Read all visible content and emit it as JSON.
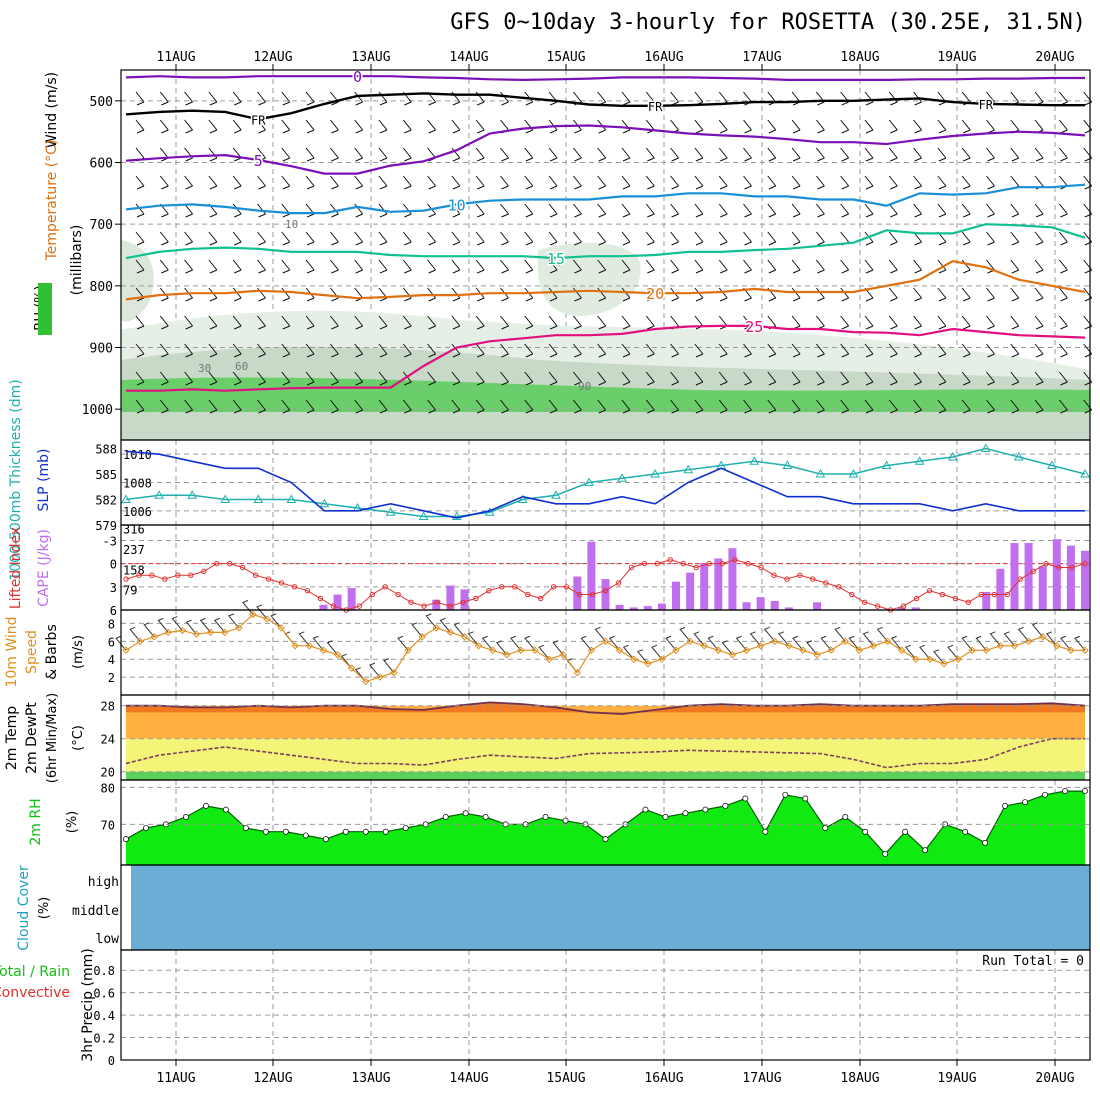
{
  "title": "GFS 0~10day 3-hourly for ROSETTA (30.25E, 31.5N)",
  "dates": [
    "11AUG",
    "12AUG",
    "13AUG",
    "14AUG",
    "15AUG",
    "16AUG",
    "17AUG",
    "18AUG",
    "19AUG",
    "20AUG"
  ],
  "chart_data": [
    {
      "type": "contour",
      "panel": "upper-air",
      "ylabel": "(millibars)",
      "side_labels": [
        "Wind (m/s)",
        "Temperature (°C)",
        "RH (%)"
      ],
      "yticks": [
        500,
        600,
        700,
        800,
        900,
        1000
      ],
      "ylim": [
        1050,
        450
      ],
      "isotherms": [
        {
          "label": "5",
          "color": "#7a10b8",
          "values": [
            597,
            593,
            590,
            588,
            596,
            606,
            618,
            618,
            605,
            598,
            580,
            553,
            545,
            541,
            540,
            543,
            548,
            553,
            556,
            558,
            562,
            567,
            567,
            570,
            563,
            557,
            553,
            550,
            552,
            556
          ]
        },
        {
          "label": "0",
          "color": "#7a10b8",
          "values": [
            462,
            460,
            462,
            462,
            460,
            460,
            460,
            460,
            460,
            462,
            463,
            465,
            466,
            465,
            464,
            462,
            462,
            462,
            463,
            464,
            466,
            466,
            466,
            466,
            465,
            465,
            464,
            464,
            463,
            463
          ]
        },
        {
          "label": "10",
          "color": "#1890d8",
          "values": [
            676,
            670,
            668,
            672,
            678,
            682,
            682,
            672,
            680,
            678,
            668,
            662,
            660,
            660,
            660,
            655,
            655,
            650,
            650,
            655,
            655,
            660,
            660,
            670,
            650,
            652,
            650,
            640,
            640,
            636
          ]
        },
        {
          "label": "15",
          "color": "#10c090",
          "values": [
            755,
            745,
            740,
            738,
            740,
            745,
            745,
            745,
            750,
            752,
            752,
            752,
            752,
            755,
            752,
            752,
            750,
            745,
            745,
            742,
            740,
            735,
            730,
            710,
            715,
            715,
            700,
            702,
            705,
            722
          ]
        },
        {
          "label": "20",
          "color": "#e07010",
          "values": [
            822,
            815,
            812,
            812,
            808,
            810,
            815,
            820,
            818,
            815,
            815,
            812,
            812,
            810,
            808,
            810,
            812,
            812,
            810,
            805,
            810,
            810,
            810,
            800,
            790,
            760,
            770,
            790,
            800,
            810
          ]
        },
        {
          "label": "25",
          "color": "#e01080",
          "values": [
            970,
            970,
            968,
            970,
            968,
            966,
            965,
            965,
            965,
            930,
            900,
            890,
            885,
            880,
            880,
            878,
            870,
            866,
            865,
            865,
            870,
            870,
            875,
            876,
            880,
            870,
            875,
            880,
            882,
            884
          ]
        }
      ],
      "freezing_level_label": "FR",
      "freezing_level": [
        522,
        518,
        516,
        518,
        530,
        520,
        505,
        492,
        490,
        488,
        490,
        490,
        495,
        500,
        506,
        508,
        508,
        507,
        505,
        502,
        502,
        500,
        500,
        498,
        496,
        502,
        505,
        506,
        507,
        507
      ],
      "rh_labels": [
        "10",
        "30",
        "60",
        "90"
      ]
    },
    {
      "type": "line",
      "panel": "thickness-slp",
      "side_labels": [
        "1000-500mb Thickness (dm)",
        "SLP (mb)"
      ],
      "left_ticks": [
        579,
        582,
        585,
        588
      ],
      "right_ticks": [
        1006,
        1008,
        1010
      ],
      "series": [
        {
          "color": "#20b0b0",
          "marker": "triangle",
          "axis": "left",
          "values": [
            582,
            582.5,
            582.5,
            582,
            582,
            582,
            581.5,
            581,
            580.5,
            580,
            580,
            580.5,
            582,
            582.5,
            584,
            584.5,
            585,
            585.5,
            586,
            586.5,
            586,
            585,
            585,
            586,
            586.5,
            587,
            588,
            587,
            586,
            585
          ]
        },
        {
          "color": "#1030d0",
          "axis": "right",
          "values": [
            1010.2,
            1010,
            1009.5,
            1009,
            1009,
            1008,
            1006,
            1006,
            1006.5,
            1006,
            1005.5,
            1006,
            1007,
            1006.5,
            1006.5,
            1007,
            1006.5,
            1008,
            1009,
            1008,
            1007,
            1007,
            1006.5,
            1006.5,
            1006.5,
            1006,
            1006.5,
            1006,
            1006,
            1006
          ]
        }
      ]
    },
    {
      "type": "bar+line",
      "panel": "instability",
      "side_labels": [
        "Lifted Index",
        "CAPE (J/kg)"
      ],
      "left_ticks": [
        -3,
        0,
        3,
        6
      ],
      "right_ticks": [
        79,
        158,
        237,
        316
      ],
      "cape_bars": [
        0,
        0,
        0,
        0,
        0,
        0,
        0,
        0,
        0,
        0,
        0,
        0,
        0,
        0,
        20,
        60,
        85,
        0,
        0,
        0,
        0,
        0,
        40,
        95,
        80,
        0,
        0,
        0,
        0,
        0,
        0,
        0,
        130,
        265,
        120,
        20,
        10,
        15,
        25,
        110,
        145,
        180,
        200,
        240,
        30,
        50,
        35,
        10,
        0,
        30,
        0,
        0,
        0,
        0,
        0,
        10,
        10,
        0,
        0,
        0,
        0,
        70,
        160,
        260,
        260,
        170,
        275,
        250,
        230
      ],
      "lifted_index": [
        2,
        1.5,
        1.5,
        2,
        1.5,
        1.5,
        1,
        0,
        0,
        0.5,
        1.5,
        2,
        2.5,
        3,
        3.5,
        4.5,
        5.5,
        6,
        5.5,
        4,
        3,
        4,
        5,
        5.5,
        5,
        5.5,
        5,
        4.5,
        3.5,
        3,
        3,
        4,
        4.5,
        3,
        3,
        4,
        4,
        3.5,
        2.5,
        0.5,
        0,
        0,
        -0.5,
        0,
        0.5,
        0,
        0,
        -0.5,
        0,
        0.5,
        1.5,
        2,
        1.5,
        2,
        2.5,
        3,
        4,
        5,
        5.5,
        6,
        5.5,
        4.5,
        3.5,
        4,
        4.5,
        5,
        4,
        4,
        4,
        2,
        1,
        0,
        0.5,
        0.5,
        0
      ]
    },
    {
      "type": "line",
      "panel": "wind-10m",
      "side_labels": [
        "10m Wind",
        "Speed",
        "& Barbs"
      ],
      "ylabel": "(m/s)",
      "yticks": [
        2,
        4,
        6,
        8
      ],
      "values": [
        5,
        6,
        6.5,
        7,
        7.2,
        6.8,
        7,
        7,
        7.5,
        9,
        8.5,
        7.5,
        5.5,
        5.5,
        5,
        4.5,
        3,
        1.5,
        2,
        2.5,
        5,
        6.5,
        7.5,
        7,
        6.5,
        5.5,
        5,
        4.5,
        5,
        5,
        4,
        4.5,
        2.5,
        5,
        6,
        5,
        4,
        3.5,
        4,
        5,
        6,
        5.5,
        5,
        4.5,
        5,
        5.5,
        6,
        5.5,
        5,
        4.5,
        5,
        6,
        5,
        5.5,
        6,
        5,
        4,
        4,
        3.5,
        4,
        5,
        5,
        5.5,
        5.5,
        6,
        6.5,
        5.5,
        5,
        5
      ]
    },
    {
      "type": "area",
      "panel": "temperature-2m",
      "side_labels": [
        "2m Temp",
        "2m DewPt",
        "(6hr Min/Max)"
      ],
      "ylabel": "(°C)",
      "yticks": [
        20,
        24,
        28
      ],
      "temp": [
        28,
        28,
        27.8,
        27.8,
        28,
        27.8,
        28,
        28,
        27.6,
        27.5,
        28,
        28.4,
        28.2,
        27.8,
        27.2,
        27,
        27.5,
        28,
        28.2,
        28,
        28,
        28.2,
        28,
        28,
        28,
        28.2,
        28.2,
        28.2,
        28.3,
        28
      ],
      "dewpoint": [
        21,
        22,
        22.5,
        23,
        22.5,
        22,
        21.5,
        21,
        21,
        20.8,
        21.5,
        22,
        21.8,
        21.6,
        22.2,
        22.3,
        22.4,
        22.6,
        22.5,
        22.4,
        22.3,
        22.2,
        21.5,
        20.5,
        21,
        21,
        21.5,
        23,
        24,
        24
      ]
    },
    {
      "type": "area",
      "panel": "rh-2m",
      "side_labels": [
        "2m RH"
      ],
      "ylabel": "(%)",
      "yticks": [
        70,
        80
      ],
      "values": [
        66,
        69,
        70,
        72,
        75,
        74,
        69,
        68,
        68,
        67,
        66,
        68,
        68,
        68,
        69,
        70,
        72,
        73,
        72,
        70,
        70,
        72,
        71,
        70,
        66,
        70,
        74,
        72,
        73,
        74,
        75,
        77,
        68,
        78,
        77,
        69,
        72,
        68,
        62,
        68,
        63,
        70,
        68,
        65,
        75,
        76,
        78,
        79,
        79
      ]
    },
    {
      "type": "area",
      "panel": "cloud-cover",
      "side_labels": [
        "Cloud Cover",
        "(%)"
      ],
      "levels": [
        "high",
        "middle",
        "low"
      ],
      "color": "#6aaed6"
    },
    {
      "type": "bar",
      "panel": "precipitation",
      "side_labels": [
        "Total / Rain",
        "Convective",
        "3hr Precip (mm)"
      ],
      "yticks": [
        0,
        0.2,
        0.4,
        0.6,
        0.8
      ],
      "run_total_label": "Run Total = 0",
      "values": []
    }
  ]
}
